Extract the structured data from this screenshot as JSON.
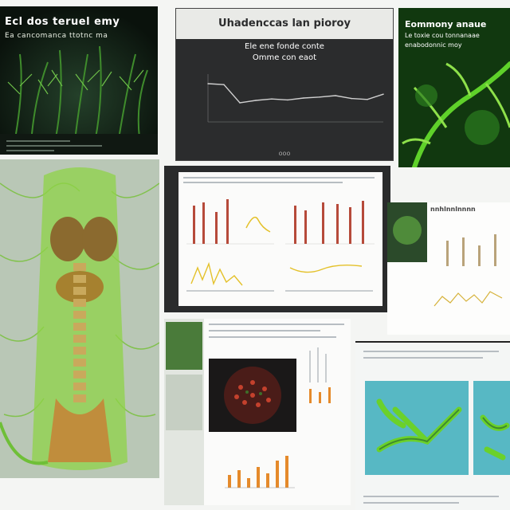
{
  "panels": {
    "p1": {
      "title": "Ecl dos teruel emy",
      "subtitle": "Ea cancomanca ttotnc ma"
    },
    "p2": {
      "title": "Uhadenccas lan pioroy",
      "sub1": "Ele ene fonde conte",
      "sub2": "Omme con eaot",
      "footer": "ooo"
    },
    "p3": {
      "title": "Eommony anaue",
      "sub1": "Le toxie cou tonnanaae",
      "sub2": "enabodonnic moy"
    },
    "p6": {
      "title": "nnhlnnlnnnn"
    }
  },
  "colors": {
    "green": "#6bd12a",
    "dark": "#1a1c1d",
    "teal": "#57b8c4",
    "orange": "#e58a2b"
  },
  "chart_data": {
    "type": "line",
    "title": "Uhadenccas lan pioroy",
    "series": [
      {
        "values": [
          0.8,
          0.78,
          0.4,
          0.45,
          0.48,
          0.46,
          0.5,
          0.52,
          0.55,
          0.49,
          0.47,
          0.58
        ]
      }
    ]
  }
}
